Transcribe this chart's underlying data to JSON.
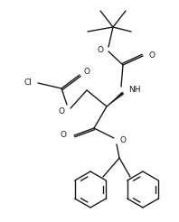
{
  "bg": "#ffffff",
  "lc": "#1a1a1a",
  "lw": 1.0,
  "fs": 6.5,
  "figsize": [
    1.98,
    2.46
  ],
  "dpi": 100,
  "xlim": [
    0,
    198
  ],
  "ylim": [
    246,
    0
  ]
}
